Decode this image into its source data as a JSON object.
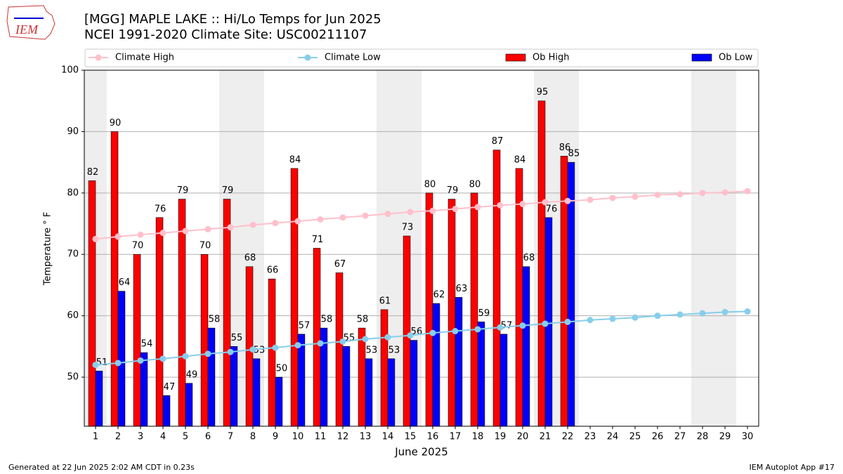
{
  "logo_text": "IEM",
  "footer_left": "Generated at 22 Jun 2025 2:02 AM CDT in 0.23s",
  "footer_right": "IEM Autoplot App #17",
  "chart_data": {
    "type": "bar",
    "title": "[MGG] MAPLE LAKE :: Hi/Lo Temps for Jun 2025",
    "subtitle": "NCEI 1991-2020 Climate Site: USC00211107",
    "xlabel": "June 2025",
    "ylabel": "Temperature ° F",
    "x": [
      1,
      2,
      3,
      4,
      5,
      6,
      7,
      8,
      9,
      10,
      11,
      12,
      13,
      14,
      15,
      16,
      17,
      18,
      19,
      20,
      21,
      22,
      23,
      24,
      25,
      26,
      27,
      28,
      29,
      30
    ],
    "xlim": [
      0.5,
      30.5
    ],
    "shaded_days": [
      1,
      7,
      8,
      14,
      15,
      21,
      22,
      28,
      29
    ],
    "ylim": [
      42,
      100
    ],
    "yticks": [
      50,
      60,
      70,
      80,
      90,
      100
    ],
    "grid": true,
    "series": [
      {
        "name": "Climate High",
        "kind": "line",
        "color": "#ffc0cb",
        "values": [
          72.5,
          72.9,
          73.2,
          73.5,
          73.8,
          74.1,
          74.4,
          74.8,
          75.1,
          75.4,
          75.7,
          76.0,
          76.3,
          76.6,
          76.9,
          77.1,
          77.4,
          77.7,
          78.0,
          78.2,
          78.5,
          78.7,
          78.9,
          79.2,
          79.4,
          79.7,
          79.8,
          80.0,
          80.1,
          80.3
        ]
      },
      {
        "name": "Climate Low",
        "kind": "line",
        "color": "#87ceeb",
        "values": [
          52.0,
          52.3,
          52.7,
          53.0,
          53.4,
          53.8,
          54.1,
          54.5,
          54.8,
          55.2,
          55.5,
          55.8,
          56.2,
          56.5,
          56.8,
          57.2,
          57.5,
          57.8,
          58.1,
          58.4,
          58.7,
          59.0,
          59.3,
          59.5,
          59.7,
          60.0,
          60.2,
          60.4,
          60.6,
          60.7
        ]
      },
      {
        "name": "Ob High",
        "kind": "bar",
        "color": "#ff0000",
        "values": [
          82,
          90,
          70,
          76,
          79,
          70,
          79,
          68,
          66,
          84,
          71,
          67,
          58,
          61,
          73,
          80,
          79,
          80,
          87,
          84,
          95,
          86,
          null,
          null,
          null,
          null,
          null,
          null,
          null,
          null
        ]
      },
      {
        "name": "Ob Low",
        "kind": "bar",
        "color": "#0000ff",
        "values": [
          51,
          64,
          54,
          47,
          49,
          58,
          55,
          53,
          50,
          57,
          58,
          55,
          53,
          53,
          56,
          62,
          63,
          59,
          57,
          68,
          76,
          85,
          null,
          null,
          null,
          null,
          null,
          null,
          null,
          null
        ]
      }
    ]
  }
}
